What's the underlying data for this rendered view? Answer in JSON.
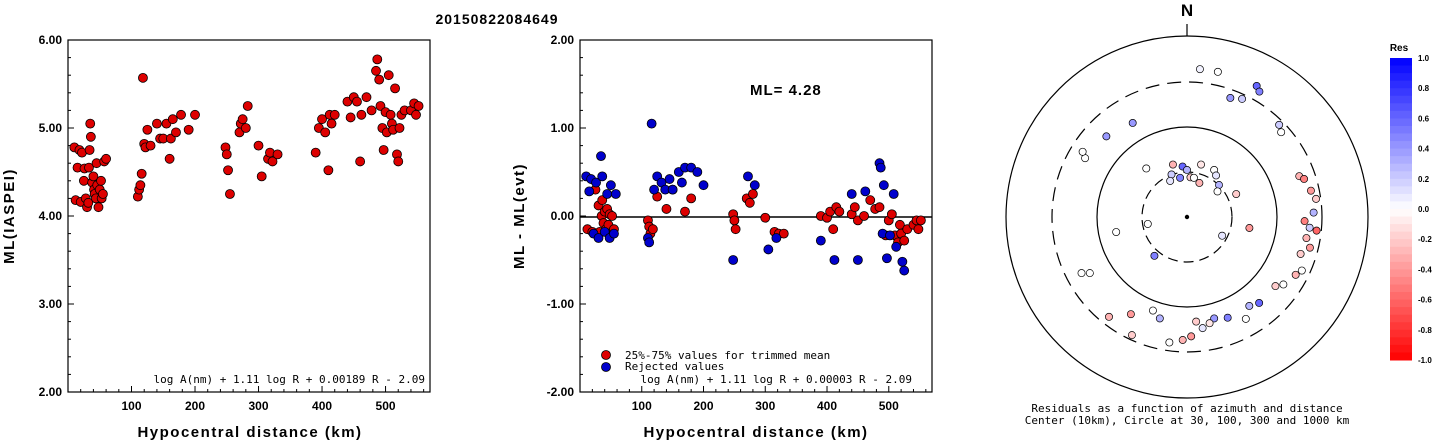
{
  "title": "20150822084649",
  "chart_data": [
    {
      "type": "scatter",
      "xlabel": "Hypocentral distance (km)",
      "ylabel": "ML(IASPEI)",
      "xlim": [
        0,
        570
      ],
      "ylim": [
        2.0,
        6.0
      ],
      "xticks": [
        "100",
        "200",
        "300",
        "400",
        "500"
      ],
      "yticks": [
        "2.00",
        "3.00",
        "4.00",
        "5.00",
        "6.00"
      ],
      "formula": "log A(nm) + 1.11 log R + 0.00189 R - 2.09",
      "points": [
        [
          10,
          4.78
        ],
        [
          12,
          4.18
        ],
        [
          15,
          4.55
        ],
        [
          18,
          4.75
        ],
        [
          20,
          4.16
        ],
        [
          22,
          4.72
        ],
        [
          25,
          4.4
        ],
        [
          26,
          4.54
        ],
        [
          28,
          4.2
        ],
        [
          30,
          4.1
        ],
        [
          32,
          4.15
        ],
        [
          33,
          4.55
        ],
        [
          34,
          4.75
        ],
        [
          35,
          5.05
        ],
        [
          36,
          4.9
        ],
        [
          38,
          4.38
        ],
        [
          40,
          4.45
        ],
        [
          41,
          4.3
        ],
        [
          42,
          4.25
        ],
        [
          44,
          4.2
        ],
        [
          45,
          4.6
        ],
        [
          46,
          4.35
        ],
        [
          48,
          4.1
        ],
        [
          50,
          4.3
        ],
        [
          52,
          4.4
        ],
        [
          53,
          4.2
        ],
        [
          55,
          4.25
        ],
        [
          57,
          4.62
        ],
        [
          60,
          4.65
        ],
        [
          110,
          4.22
        ],
        [
          112,
          4.3
        ],
        [
          114,
          4.35
        ],
        [
          116,
          4.48
        ],
        [
          118,
          5.57
        ],
        [
          120,
          4.82
        ],
        [
          122,
          4.78
        ],
        [
          125,
          4.98
        ],
        [
          130,
          4.8
        ],
        [
          140,
          5.05
        ],
        [
          145,
          4.88
        ],
        [
          150,
          4.88
        ],
        [
          155,
          5.05
        ],
        [
          160,
          4.65
        ],
        [
          162,
          4.88
        ],
        [
          165,
          5.1
        ],
        [
          170,
          4.95
        ],
        [
          178,
          5.15
        ],
        [
          190,
          4.98
        ],
        [
          200,
          5.15
        ],
        [
          248,
          4.78
        ],
        [
          250,
          4.7
        ],
        [
          252,
          4.52
        ],
        [
          255,
          4.25
        ],
        [
          270,
          4.95
        ],
        [
          272,
          5.05
        ],
        [
          275,
          5.1
        ],
        [
          280,
          5.0
        ],
        [
          283,
          5.25
        ],
        [
          300,
          4.8
        ],
        [
          305,
          4.45
        ],
        [
          315,
          4.65
        ],
        [
          318,
          4.72
        ],
        [
          322,
          4.62
        ],
        [
          330,
          4.7
        ],
        [
          390,
          4.72
        ],
        [
          395,
          5.0
        ],
        [
          400,
          5.1
        ],
        [
          405,
          4.95
        ],
        [
          410,
          4.52
        ],
        [
          412,
          5.15
        ],
        [
          415,
          5.05
        ],
        [
          420,
          5.15
        ],
        [
          440,
          5.3
        ],
        [
          445,
          5.12
        ],
        [
          450,
          5.35
        ],
        [
          455,
          5.3
        ],
        [
          460,
          4.62
        ],
        [
          462,
          5.15
        ],
        [
          470,
          5.35
        ],
        [
          478,
          5.2
        ],
        [
          485,
          5.65
        ],
        [
          487,
          5.78
        ],
        [
          490,
          5.55
        ],
        [
          492,
          5.25
        ],
        [
          495,
          5.0
        ],
        [
          497,
          4.75
        ],
        [
          500,
          5.18
        ],
        [
          502,
          4.95
        ],
        [
          505,
          5.6
        ],
        [
          508,
          5.15
        ],
        [
          510,
          5.05
        ],
        [
          512,
          4.98
        ],
        [
          515,
          5.45
        ],
        [
          518,
          4.7
        ],
        [
          520,
          4.62
        ],
        [
          522,
          5.0
        ],
        [
          525,
          5.15
        ],
        [
          530,
          5.2
        ],
        [
          540,
          5.2
        ],
        [
          545,
          5.28
        ],
        [
          548,
          5.15
        ],
        [
          552,
          5.25
        ]
      ]
    },
    {
      "type": "scatter",
      "xlabel": "Hypocentral distance (km)",
      "ylabel": "ML - ML(evt)",
      "xlim": [
        0,
        570
      ],
      "ylim": [
        -2.0,
        2.0
      ],
      "xticks": [
        "100",
        "200",
        "300",
        "400",
        "500"
      ],
      "yticks": [
        "-2.00",
        "-1.00",
        "0.00",
        "1.00",
        "2.00"
      ],
      "annotation": "ML= 4.28",
      "formula": "log A(nm) + 1.11 log R + 0.00003 R - 2.09",
      "legend": [
        "25%-75% values for trimmed mean",
        "Rejected values"
      ],
      "series": [
        {
          "name": "25%-75% values for trimmed mean",
          "color": "#dd0000",
          "points": [
            [
              12,
              -0.15
            ],
            [
              20,
              -0.18
            ],
            [
              25,
              0.3
            ],
            [
              28,
              -0.2
            ],
            [
              30,
              0.12
            ],
            [
              32,
              -0.18
            ],
            [
              35,
              0.0
            ],
            [
              36,
              0.18
            ],
            [
              38,
              -0.08
            ],
            [
              40,
              0.05
            ],
            [
              42,
              -0.15
            ],
            [
              44,
              0.08
            ],
            [
              46,
              -0.1
            ],
            [
              48,
              0.02
            ],
            [
              50,
              -0.2
            ],
            [
              52,
              0.0
            ],
            [
              55,
              -0.15
            ],
            [
              110,
              -0.05
            ],
            [
              112,
              -0.12
            ],
            [
              114,
              -0.2
            ],
            [
              118,
              -0.15
            ],
            [
              125,
              0.22
            ],
            [
              140,
              0.08
            ],
            [
              150,
              0.3
            ],
            [
              180,
              0.2
            ],
            [
              170,
              0.05
            ],
            [
              248,
              0.02
            ],
            [
              250,
              -0.05
            ],
            [
              252,
              -0.15
            ],
            [
              270,
              0.2
            ],
            [
              275,
              0.15
            ],
            [
              280,
              0.25
            ],
            [
              300,
              -0.02
            ],
            [
              315,
              -0.18
            ],
            [
              322,
              -0.2
            ],
            [
              330,
              -0.2
            ],
            [
              390,
              0.0
            ],
            [
              400,
              -0.02
            ],
            [
              405,
              0.05
            ],
            [
              410,
              -0.15
            ],
            [
              415,
              0.1
            ],
            [
              420,
              0.05
            ],
            [
              440,
              0.02
            ],
            [
              445,
              0.1
            ],
            [
              450,
              -0.05
            ],
            [
              460,
              0.0
            ],
            [
              470,
              0.18
            ],
            [
              478,
              0.08
            ],
            [
              485,
              0.1
            ],
            [
              495,
              -0.22
            ],
            [
              500,
              -0.05
            ],
            [
              505,
              0.02
            ],
            [
              510,
              -0.22
            ],
            [
              515,
              -0.3
            ],
            [
              518,
              -0.1
            ],
            [
              520,
              -0.2
            ],
            [
              525,
              -0.28
            ],
            [
              530,
              -0.15
            ],
            [
              540,
              -0.1
            ],
            [
              545,
              -0.05
            ],
            [
              548,
              -0.15
            ],
            [
              552,
              -0.05
            ]
          ]
        },
        {
          "name": "Rejected values",
          "color": "#0000cc",
          "points": [
            [
              10,
              0.45
            ],
            [
              15,
              0.28
            ],
            [
              18,
              0.42
            ],
            [
              22,
              -0.2
            ],
            [
              26,
              0.38
            ],
            [
              30,
              -0.25
            ],
            [
              34,
              0.68
            ],
            [
              36,
              0.45
            ],
            [
              40,
              -0.18
            ],
            [
              44,
              0.25
            ],
            [
              48,
              -0.25
            ],
            [
              50,
              0.35
            ],
            [
              55,
              -0.2
            ],
            [
              58,
              0.25
            ],
            [
              110,
              -0.25
            ],
            [
              112,
              -0.3
            ],
            [
              116,
              1.05
            ],
            [
              120,
              0.3
            ],
            [
              125,
              0.45
            ],
            [
              132,
              0.38
            ],
            [
              138,
              0.3
            ],
            [
              145,
              0.42
            ],
            [
              150,
              0.3
            ],
            [
              160,
              0.5
            ],
            [
              165,
              0.38
            ],
            [
              170,
              0.55
            ],
            [
              180,
              0.55
            ],
            [
              190,
              0.5
            ],
            [
              200,
              0.35
            ],
            [
              248,
              -0.5
            ],
            [
              272,
              0.45
            ],
            [
              283,
              0.35
            ],
            [
              305,
              -0.38
            ],
            [
              318,
              -0.25
            ],
            [
              390,
              -0.28
            ],
            [
              412,
              -0.5
            ],
            [
              440,
              0.25
            ],
            [
              450,
              -0.5
            ],
            [
              462,
              0.28
            ],
            [
              485,
              0.6
            ],
            [
              487,
              0.55
            ],
            [
              490,
              -0.2
            ],
            [
              492,
              0.35
            ],
            [
              497,
              -0.48
            ],
            [
              502,
              -0.22
            ],
            [
              508,
              0.25
            ],
            [
              512,
              -0.35
            ],
            [
              522,
              -0.52
            ],
            [
              525,
              -0.62
            ]
          ]
        }
      ]
    },
    {
      "type": "scatter",
      "subtype": "polar",
      "north_label": "N",
      "caption_line1": "Residuals as a function of azimuth and distance",
      "caption_line2": "Center (10km), Circle at 30, 100, 300 and 1000 km",
      "colorbar_title": "Res",
      "colorbar_ticks": [
        "1.0",
        "0.8",
        "0.6",
        "0.4",
        "0.2",
        "0.0",
        "-0.2",
        "-0.4",
        "-0.6",
        "-0.8",
        "-1.0"
      ],
      "stations_polar": [
        [
          5,
          0.82,
          0.05
        ],
        [
          12,
          0.82,
          0.0
        ],
        [
          28,
          0.82,
          0.6
        ],
        [
          30,
          0.8,
          0.5
        ],
        [
          20,
          0.7,
          0.4
        ],
        [
          25,
          0.72,
          0.2
        ],
        [
          45,
          0.72,
          0.2
        ],
        [
          48,
          0.7,
          0.0
        ],
        [
          70,
          0.66,
          -0.3
        ],
        [
          72,
          0.68,
          -0.5
        ],
        [
          78,
          0.7,
          -0.4
        ],
        [
          82,
          0.72,
          -0.2
        ],
        [
          88,
          0.7,
          0.3
        ],
        [
          92,
          0.65,
          -0.5
        ],
        [
          95,
          0.68,
          0.2
        ],
        [
          96,
          0.72,
          -0.6
        ],
        [
          100,
          0.67,
          -0.3
        ],
        [
          104,
          0.7,
          -0.4
        ],
        [
          108,
          0.66,
          -0.2
        ],
        [
          115,
          0.7,
          0.0
        ],
        [
          118,
          0.68,
          -0.3
        ],
        [
          125,
          0.65,
          0.0
        ],
        [
          128,
          0.62,
          -0.2
        ],
        [
          140,
          0.62,
          0.6
        ],
        [
          145,
          0.6,
          0.3
        ],
        [
          150,
          0.65,
          0.0
        ],
        [
          158,
          0.6,
          0.5
        ],
        [
          165,
          0.58,
          0.4
        ],
        [
          168,
          0.6,
          -0.1
        ],
        [
          172,
          0.62,
          0.1
        ],
        [
          175,
          0.58,
          -0.2
        ],
        [
          178,
          0.66,
          -0.4
        ],
        [
          182,
          0.68,
          -0.3
        ],
        [
          188,
          0.7,
          0.0
        ],
        [
          195,
          0.58,
          0.3
        ],
        [
          200,
          0.55,
          0.0
        ],
        [
          205,
          0.72,
          -0.2
        ],
        [
          210,
          0.62,
          -0.4
        ],
        [
          218,
          0.7,
          -0.3
        ],
        [
          240,
          0.62,
          0.0
        ],
        [
          242,
          0.66,
          0.0
        ],
        [
          258,
          0.4,
          0.0
        ],
        [
          300,
          0.65,
          0.0
        ],
        [
          302,
          0.68,
          0.0
        ],
        [
          315,
          0.63,
          0.4
        ],
        [
          330,
          0.6,
          0.4
        ],
        [
          100,
          0.35,
          -0.4
        ],
        [
          118,
          0.22,
          0.1
        ],
        [
          65,
          0.3,
          -0.2
        ],
        [
          30,
          0.3,
          0.0
        ],
        [
          35,
          0.28,
          0.1
        ],
        [
          355,
          0.28,
          0.6
        ],
        [
          0,
          0.26,
          0.3
        ],
        [
          5,
          0.22,
          -0.2
        ],
        [
          15,
          0.3,
          -0.1
        ],
        [
          340,
          0.25,
          0.2
        ],
        [
          335,
          0.22,
          0.1
        ],
        [
          350,
          0.22,
          0.5
        ],
        [
          10,
          0.22,
          0.0
        ],
        [
          260,
          0.22,
          0.0
        ],
        [
          220,
          0.28,
          0.5
        ],
        [
          45,
          0.25,
          0.3
        ],
        [
          50,
          0.22,
          0.0
        ],
        [
          345,
          0.3,
          -0.3
        ],
        [
          320,
          0.35,
          0.0
        ],
        [
          20,
          0.2,
          -0.3
        ]
      ]
    }
  ]
}
